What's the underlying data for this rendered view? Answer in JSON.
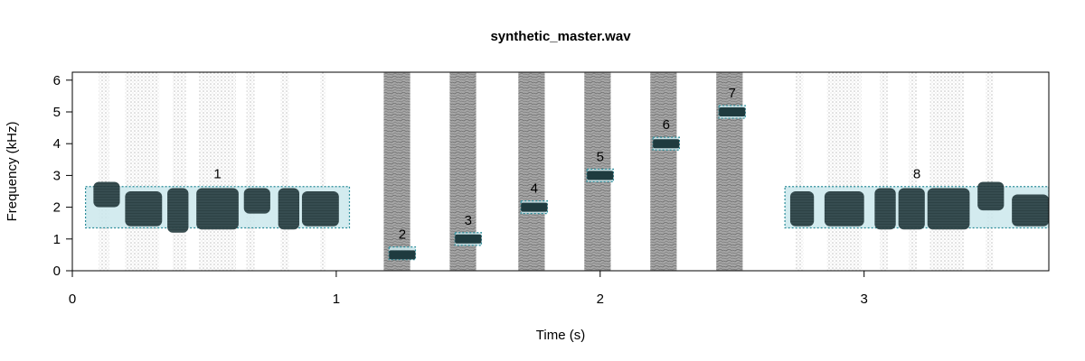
{
  "chart_data": {
    "type": "spectrogram",
    "title": "synthetic_master.wav",
    "xlabel": "Time (s)",
    "ylabel": "Frequency (kHz)",
    "xlim": [
      0,
      3.7
    ],
    "ylim": [
      0,
      6.25
    ],
    "x_ticks": [
      0,
      1,
      2,
      3
    ],
    "y_ticks": [
      0,
      1,
      2,
      3,
      4,
      5,
      6
    ],
    "grid": false,
    "colors": {
      "energy_dark": "#1f3b3f",
      "noise_gray": "#8c8c8c",
      "annotation_fill": "#cbe8ec",
      "annotation_border": "#2a8c99",
      "frame": "#000000"
    },
    "annotations": [
      {
        "label": "1",
        "t_start": 0.05,
        "t_end": 1.05,
        "f_low": 1.35,
        "f_high": 2.65
      },
      {
        "label": "2",
        "t_start": 1.2,
        "t_end": 1.3,
        "f_low": 0.35,
        "f_high": 0.75
      },
      {
        "label": "3",
        "t_start": 1.45,
        "t_end": 1.55,
        "f_low": 0.8,
        "f_high": 1.2
      },
      {
        "label": "4",
        "t_start": 1.7,
        "t_end": 1.8,
        "f_low": 1.8,
        "f_high": 2.2
      },
      {
        "label": "5",
        "t_start": 1.95,
        "t_end": 2.05,
        "f_low": 2.8,
        "f_high": 3.2
      },
      {
        "label": "6",
        "t_start": 2.2,
        "t_end": 2.3,
        "f_low": 3.8,
        "f_high": 4.2
      },
      {
        "label": "7",
        "t_start": 2.45,
        "t_end": 2.55,
        "f_low": 4.8,
        "f_high": 5.2
      },
      {
        "label": "8",
        "t_start": 2.7,
        "t_end": 3.7,
        "f_low": 1.35,
        "f_high": 2.65
      }
    ],
    "tone_events": [
      {
        "t_start": 1.2,
        "t_end": 1.3,
        "f": 0.5
      },
      {
        "t_start": 1.45,
        "t_end": 1.55,
        "f": 1.0
      },
      {
        "t_start": 1.7,
        "t_end": 1.8,
        "f": 2.0
      },
      {
        "t_start": 1.95,
        "t_end": 2.05,
        "f": 3.0
      },
      {
        "t_start": 2.2,
        "t_end": 2.3,
        "f": 4.0
      },
      {
        "t_start": 2.45,
        "t_end": 2.55,
        "f": 5.0
      }
    ],
    "noise_bands": [
      {
        "t_start": 1.18,
        "t_end": 1.28
      },
      {
        "t_start": 1.43,
        "t_end": 1.53
      },
      {
        "t_start": 1.69,
        "t_end": 1.79
      },
      {
        "t_start": 1.94,
        "t_end": 2.04
      },
      {
        "t_start": 2.19,
        "t_end": 2.29
      },
      {
        "t_start": 2.44,
        "t_end": 2.54
      }
    ],
    "song_segments": [
      {
        "t_start": 0.08,
        "t_end": 0.18,
        "f_low": 2.0,
        "f_high": 2.8
      },
      {
        "t_start": 0.2,
        "t_end": 0.34,
        "f_low": 1.4,
        "f_high": 2.5
      },
      {
        "t_start": 0.36,
        "t_end": 0.44,
        "f_low": 1.2,
        "f_high": 2.6
      },
      {
        "t_start": 0.47,
        "t_end": 0.63,
        "f_low": 1.3,
        "f_high": 2.6
      },
      {
        "t_start": 0.65,
        "t_end": 0.75,
        "f_low": 1.8,
        "f_high": 2.6
      },
      {
        "t_start": 0.78,
        "t_end": 0.86,
        "f_low": 1.3,
        "f_high": 2.6
      },
      {
        "t_start": 0.87,
        "t_end": 1.01,
        "f_low": 1.4,
        "f_high": 2.5
      },
      {
        "t_start": 2.72,
        "t_end": 2.81,
        "f_low": 1.4,
        "f_high": 2.5
      },
      {
        "t_start": 2.85,
        "t_end": 3.0,
        "f_low": 1.4,
        "f_high": 2.5
      },
      {
        "t_start": 3.04,
        "t_end": 3.12,
        "f_low": 1.3,
        "f_high": 2.6
      },
      {
        "t_start": 3.13,
        "t_end": 3.23,
        "f_low": 1.3,
        "f_high": 2.6
      },
      {
        "t_start": 3.24,
        "t_end": 3.4,
        "f_low": 1.3,
        "f_high": 2.6
      },
      {
        "t_start": 3.43,
        "t_end": 3.53,
        "f_low": 1.9,
        "f_high": 2.8
      },
      {
        "t_start": 3.56,
        "t_end": 3.7,
        "f_low": 1.4,
        "f_high": 2.4
      }
    ],
    "harmonic_columns": [
      {
        "t_start": 0.1,
        "t_end": 0.14
      },
      {
        "t_start": 0.2,
        "t_end": 0.33
      },
      {
        "t_start": 0.38,
        "t_end": 0.43
      },
      {
        "t_start": 0.48,
        "t_end": 0.62
      },
      {
        "t_start": 0.66,
        "t_end": 0.69
      },
      {
        "t_start": 0.79,
        "t_end": 0.82
      },
      {
        "t_start": 0.94,
        "t_end": 0.96
      },
      {
        "t_start": 2.74,
        "t_end": 2.77
      },
      {
        "t_start": 2.86,
        "t_end": 2.99
      },
      {
        "t_start": 3.06,
        "t_end": 3.09
      },
      {
        "t_start": 3.17,
        "t_end": 3.2
      },
      {
        "t_start": 3.25,
        "t_end": 3.38
      },
      {
        "t_start": 3.46,
        "t_end": 3.49
      }
    ]
  }
}
